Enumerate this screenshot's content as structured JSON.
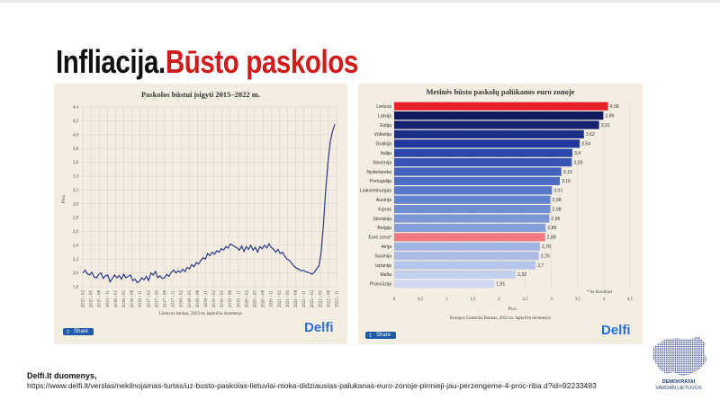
{
  "slide": {
    "title_part1": "Infliacija.",
    "title_part2": "Būsto paskolos",
    "credit_label": "Delfi.lt duomenys,",
    "credit_url": "https://www.delfi.lt/verslas/nekilnojamas-turtas/uz-busto-paskolas-lietuviai-moka-didziausias-palukanas-euro-zonoje-pirmieji-jau-perzengeme-4-proc-riba.d?id=92233483",
    "brand_line1": "DEMOKRATAI",
    "brand_line2": "VARDAN LIETUVOS",
    "share_label": "Share",
    "delfi_logo": "Delfi",
    "colors": {
      "title_accent": "#d21a1a",
      "panel_bg": "#f3eee1",
      "line": "#2b3a8f",
      "highlight": "#e8202a"
    }
  },
  "chart_data": [
    {
      "type": "line",
      "title": "Paskolos būstui įsigyti 2015–2022 m.",
      "ylabel": "Proc.",
      "source": "Lietuvos bankas, 2022 m. lapkričio duomenys",
      "ylim": [
        1.8,
        4.4
      ],
      "yticks": [
        1.8,
        2.0,
        2.2,
        2.4,
        2.6,
        2.8,
        3.0,
        3.2,
        3.4,
        3.6,
        3.8,
        4.0,
        4.2,
        4.4
      ],
      "ytick_labels": [
        "1,8",
        "2,0",
        "2,2",
        "2,4",
        "2,6",
        "2,8",
        "3,0",
        "3,2",
        "3,4",
        "3,6",
        "3,8",
        "4,0",
        "4,2",
        "4,4"
      ],
      "xtick_labels": [
        "2015 - 02",
        "2015 - 05",
        "2015 - 08",
        "2015 - 11",
        "2016 - 02",
        "2016 - 05",
        "2016 - 08",
        "2016 - 11",
        "2017 - 02",
        "2017 - 05",
        "2017 - 08",
        "2017 - 11",
        "2018 - 02",
        "2018 - 05",
        "2018 - 08",
        "2018 - 11",
        "2019 - 02",
        "2019 - 05",
        "2019 - 08",
        "2019 - 11",
        "2020 - 02",
        "2020 - 05",
        "2020 - 08",
        "2020 - 11",
        "2021 - 02",
        "2021 - 05",
        "2021 - 08",
        "2021 - 11",
        "2022 - 02",
        "2022 - 05",
        "2022 - 08",
        "2022 - 11"
      ],
      "grid": true,
      "values": [
        2.0,
        2.04,
        1.99,
        1.97,
        2.01,
        1.94,
        1.93,
        1.98,
        2.0,
        1.92,
        1.96,
        1.97,
        1.87,
        1.92,
        1.97,
        1.93,
        1.96,
        1.91,
        1.98,
        1.93,
        1.95,
        1.97,
        1.89,
        1.91,
        1.86,
        1.88,
        1.93,
        1.9,
        1.95,
        1.89,
        2.0,
        1.97,
        2.02,
        1.93,
        1.96,
        1.92,
        1.93,
        1.98,
        1.95,
        2.01,
        2.04,
        2.0,
        2.03,
        2.01,
        2.05,
        2.02,
        2.08,
        2.06,
        2.12,
        2.09,
        2.15,
        2.13,
        2.18,
        2.22,
        2.2,
        2.28,
        2.25,
        2.3,
        2.27,
        2.32,
        2.3,
        2.35,
        2.33,
        2.38,
        2.36,
        2.42,
        2.4,
        2.38,
        2.36,
        2.33,
        2.39,
        2.31,
        2.38,
        2.34,
        2.4,
        2.33,
        2.37,
        2.3,
        2.38,
        2.35,
        2.4,
        2.36,
        2.42,
        2.37,
        2.34,
        2.3,
        2.34,
        2.28,
        2.3,
        2.24,
        2.2,
        2.18,
        2.14,
        2.1,
        2.07,
        2.06,
        2.03,
        2.04,
        2.02,
        2.01,
        2.0,
        1.98,
        2.01,
        2.06,
        2.1,
        2.3,
        2.7,
        3.2,
        3.6,
        3.9,
        4.05,
        4.15
      ]
    },
    {
      "type": "bar",
      "orientation": "horizontal",
      "title": "Metinės būsto paskolų palūkanos euro zonoje",
      "xlabel": "Proc.",
      "source": "Europos Centrinis Bankas, 2022 m. lapkričio duomenys",
      "note": "* be Kroatijos",
      "xlim": [
        0,
        4.5
      ],
      "xticks": [
        0,
        0.5,
        1,
        1.5,
        2,
        2.5,
        3,
        3.5,
        4,
        4.5
      ],
      "xtick_labels": [
        "0",
        "0,5",
        "1",
        "1,5",
        "2",
        "2,5",
        "3",
        "3,5",
        "4",
        "4,5"
      ],
      "categories": [
        "Lietuva",
        "Latvija",
        "Estija",
        "Vokietija",
        "Graikija",
        "Italija",
        "Slovėnija",
        "Nyderlandai",
        "Portugalija",
        "Liuksemburgas",
        "Austrija",
        "Kipras",
        "Slovakija",
        "Belgija",
        "Euro zona*",
        "Airija",
        "Suomija",
        "Ispanija",
        "Malta",
        "Prancūzija"
      ],
      "values": [
        4.08,
        3.99,
        3.91,
        3.62,
        3.54,
        3.4,
        3.39,
        3.19,
        3.16,
        3.01,
        2.98,
        2.98,
        2.96,
        2.89,
        2.88,
        2.78,
        2.76,
        2.7,
        2.32,
        1.91
      ],
      "value_labels": [
        "4,08",
        "3,99",
        "3,91",
        "3,62",
        "3,54",
        "3,4",
        "3,39",
        "3,19",
        "3,16",
        "3,01",
        "2,98",
        "2,98",
        "2,96",
        "2,89",
        "2,88",
        "2,78",
        "2,76",
        "2,7",
        "2,32",
        "1,91"
      ],
      "colors": [
        "#e8202a",
        "#0e1a5c",
        "#14236e",
        "#1b2f86",
        "#22399a",
        "#2c47ab",
        "#3554b5",
        "#4262bd",
        "#4d6dc4",
        "#5878c9",
        "#6483ce",
        "#6f8dd2",
        "#7a96d6",
        "#859fda",
        "#f27780",
        "#a0b3e2",
        "#abbbe5",
        "#b6c4e9",
        "#c4cfed",
        "#d2daf1"
      ]
    }
  ]
}
